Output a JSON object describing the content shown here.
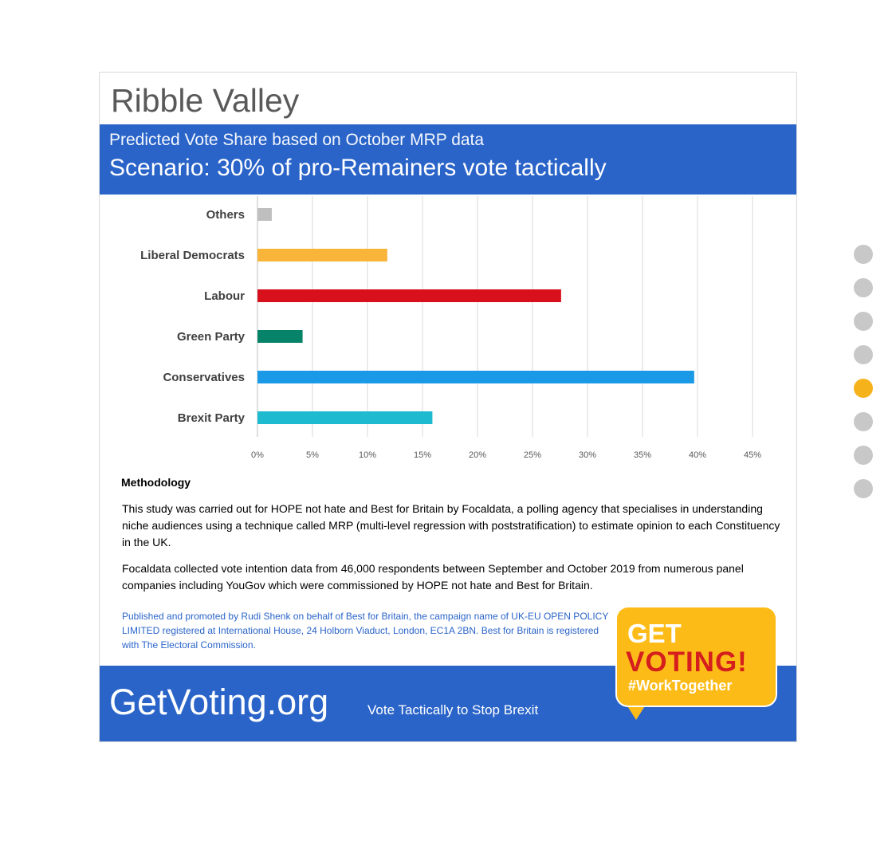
{
  "header": {
    "title": "Ribble Valley",
    "subtitle": "Predicted Vote Share based on October MRP data",
    "scenario": "Scenario: 30% of pro-Remainers vote tactically"
  },
  "chart_data": {
    "type": "bar",
    "orientation": "horizontal",
    "categories": [
      "Others",
      "Liberal Democrats",
      "Labour",
      "Green Party",
      "Conservatives",
      "Brexit Party"
    ],
    "values": [
      1.3,
      11.8,
      27.6,
      4.1,
      39.7,
      15.9
    ],
    "colors": [
      "#bfbfbf",
      "#f9b43a",
      "#d8101c",
      "#07836a",
      "#1a9ae6",
      "#1ebad0"
    ],
    "xlim": [
      0,
      45
    ],
    "xticks": [
      "0%",
      "5%",
      "10%",
      "15%",
      "20%",
      "25%",
      "30%",
      "35%",
      "40%",
      "45%"
    ],
    "xtick_values": [
      0,
      5,
      10,
      15,
      20,
      25,
      30,
      35,
      40,
      45
    ],
    "grid": true,
    "legend": "none"
  },
  "methodology": {
    "heading": "Methodology",
    "paragraph1": "This study was carried out for HOPE not hate and Best for Britain by Focaldata, a polling agency that specialises in understanding niche audiences using a technique called MRP (multi-level regression with poststratification) to estimate opinion to each Constituency in the UK.",
    "paragraph2": "Focaldata collected vote intention data from 46,000 respondents between September and October 2019 from numerous panel companies including YouGov which were commissioned by HOPE not hate and Best for Britain.",
    "legal": "Published and promoted by Rudi Shenk on behalf of Best for Britain, the campaign name of UK-EU OPEN POLICY LIMITED registered at International House, 24 Holborn Viaduct, London, EC1A 2BN. Best for Britain is registered with The Electoral Commission."
  },
  "footer": {
    "site": "GetVoting.org",
    "tagline": "Vote Tactically to Stop Brexit"
  },
  "badge": {
    "line1": "GET",
    "line2": "VOTING!",
    "line3": "#WorkTogether"
  },
  "carousel": {
    "count": 8,
    "active_index": 4,
    "active_color": "#f6b21b",
    "inactive_color": "#c8c8c8"
  }
}
